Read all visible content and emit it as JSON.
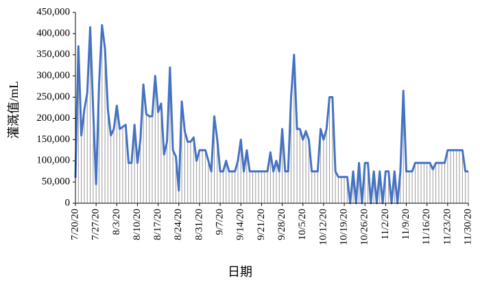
{
  "chart_data": {
    "type": "line",
    "x_label": "日期",
    "y_label": "灌溉值/mL",
    "color": "#4472c4",
    "drop_lines": true,
    "drop_line_color": "#999999",
    "grid": false,
    "ylim": [
      0,
      450000
    ],
    "yticks": [
      0,
      {
        "value": 50000,
        "label": "50,000"
      },
      {
        "value": 100000,
        "label": "100,000"
      },
      {
        "value": 150000,
        "label": "150,000"
      },
      {
        "value": 200000,
        "label": "200,000"
      },
      {
        "value": 250000,
        "label": "250,000"
      },
      {
        "value": 300000,
        "label": "300,000"
      },
      {
        "value": 350000,
        "label": "350,000"
      },
      {
        "value": 400000,
        "label": "400,000"
      },
      {
        "value": 450000,
        "label": "450,000"
      }
    ],
    "categories": [
      "7/20/20",
      null,
      null,
      null,
      null,
      null,
      null,
      "7/27/20",
      null,
      null,
      null,
      null,
      null,
      null,
      "8/3/20",
      null,
      null,
      null,
      null,
      null,
      null,
      "8/10/20",
      null,
      null,
      null,
      null,
      null,
      null,
      "8/17/20",
      null,
      null,
      null,
      null,
      null,
      null,
      "8/24/20",
      null,
      null,
      null,
      null,
      null,
      null,
      "8/31/20",
      null,
      null,
      null,
      null,
      null,
      null,
      "9/7/20",
      null,
      null,
      null,
      null,
      null,
      null,
      "9/14/20",
      null,
      null,
      null,
      null,
      null,
      null,
      "9/21/20",
      null,
      null,
      null,
      null,
      null,
      null,
      "9/28/20",
      null,
      null,
      null,
      null,
      null,
      null,
      "10/5/20",
      null,
      null,
      null,
      null,
      null,
      null,
      "10/12/20",
      null,
      null,
      null,
      null,
      null,
      null,
      "10/19/20",
      null,
      null,
      null,
      null,
      null,
      null,
      "10/26/20",
      null,
      null,
      null,
      null,
      null,
      null,
      "11/2/20",
      null,
      null,
      null,
      null,
      null,
      null,
      "11/9/20",
      null,
      null,
      null,
      null,
      null,
      null,
      "11/16/20",
      null,
      null,
      null,
      null,
      null,
      null,
      "11/23/20",
      null,
      null,
      null,
      null,
      null,
      null,
      "11/30/20"
    ],
    "values": [
      60000,
      370000,
      160000,
      220000,
      260000,
      415000,
      220000,
      45000,
      280000,
      420000,
      365000,
      220000,
      160000,
      175000,
      230000,
      175000,
      180000,
      185000,
      95000,
      95000,
      185000,
      95000,
      150000,
      280000,
      210000,
      205000,
      205000,
      300000,
      215000,
      235000,
      115000,
      145000,
      320000,
      125000,
      110000,
      30000,
      240000,
      170000,
      145000,
      145000,
      155000,
      100000,
      125000,
      125000,
      125000,
      100000,
      75000,
      205000,
      150000,
      75000,
      75000,
      100000,
      75000,
      75000,
      75000,
      100000,
      150000,
      75000,
      125000,
      75000,
      75000,
      75000,
      75000,
      75000,
      75000,
      75000,
      120000,
      75000,
      100000,
      75000,
      175000,
      75000,
      75000,
      250000,
      350000,
      175000,
      175000,
      150000,
      170000,
      150000,
      75000,
      75000,
      75000,
      175000,
      150000,
      175000,
      250000,
      250000,
      75000,
      62000,
      62000,
      62000,
      62000,
      0,
      75000,
      0,
      95000,
      0,
      95000,
      95000,
      0,
      75000,
      0,
      75000,
      0,
      75000,
      75000,
      0,
      75000,
      0,
      75000,
      265000,
      75000,
      75000,
      75000,
      95000,
      95000,
      95000,
      95000,
      95000,
      95000,
      80000,
      95000,
      95000,
      95000,
      95000,
      125000,
      125000,
      125000,
      125000,
      125000,
      125000,
      75000,
      75000
    ]
  }
}
